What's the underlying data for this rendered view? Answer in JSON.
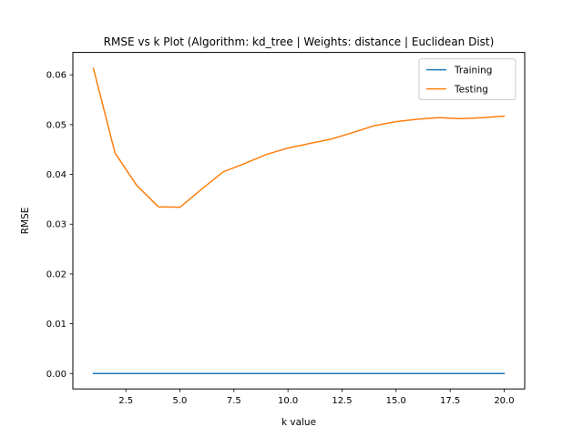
{
  "chart_data": {
    "type": "line",
    "title": "RMSE vs k Plot (Algorithm: kd_tree | Weights: distance | Euclidean Dist)",
    "xlabel": "k value",
    "ylabel": "RMSE",
    "xlim": [
      0.05,
      20.95
    ],
    "ylim": [
      -0.0031,
      0.0645
    ],
    "xticks": [
      2.5,
      5.0,
      7.5,
      10.0,
      12.5,
      15.0,
      17.5,
      20.0
    ],
    "xtick_labels": [
      "2.5",
      "5.0",
      "7.5",
      "10.0",
      "12.5",
      "15.0",
      "17.5",
      "20.0"
    ],
    "yticks": [
      0.0,
      0.01,
      0.02,
      0.03,
      0.04,
      0.05,
      0.06
    ],
    "ytick_labels": [
      "0.00",
      "0.01",
      "0.02",
      "0.03",
      "0.04",
      "0.05",
      "0.06"
    ],
    "grid": false,
    "legend_position": "top-right",
    "x": [
      1,
      2,
      3,
      4,
      5,
      6,
      7,
      8,
      9,
      10,
      11,
      12,
      13,
      14,
      15,
      16,
      17,
      18,
      19,
      20
    ],
    "series": [
      {
        "name": "Training",
        "color": "#1f77b4",
        "values": [
          0,
          0,
          0,
          0,
          0,
          0,
          0,
          0,
          0,
          0,
          0,
          0,
          0,
          0,
          0,
          0,
          0,
          0,
          0,
          0
        ]
      },
      {
        "name": "Testing",
        "color": "#ff7f0e",
        "values": [
          0.0613,
          0.0443,
          0.0378,
          0.0335,
          0.0334,
          0.037,
          0.0405,
          0.0422,
          0.044,
          0.0453,
          0.0462,
          0.0471,
          0.0484,
          0.0498,
          0.0506,
          0.0511,
          0.0514,
          0.0512,
          0.0514,
          0.0517
        ]
      }
    ]
  }
}
